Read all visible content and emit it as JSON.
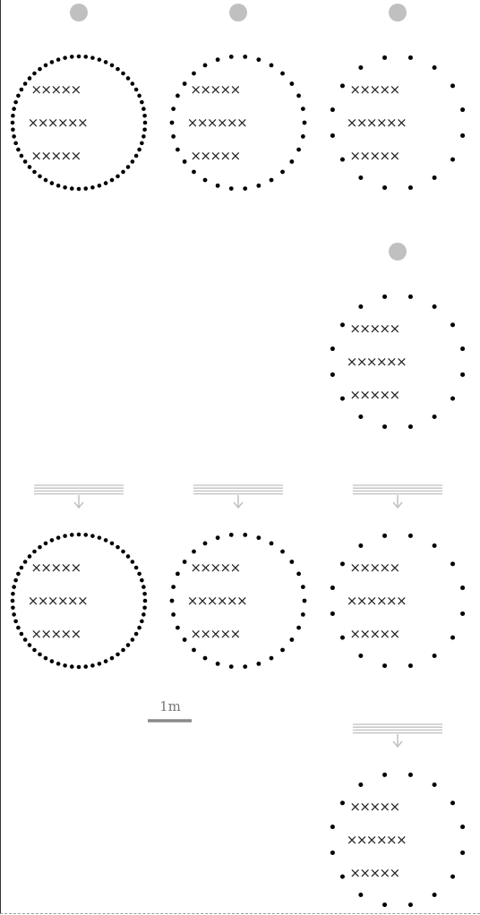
{
  "colors": {
    "ink": "#000000",
    "accent_gray": "#c0c0c0",
    "scale_bar": "#8a8a8a",
    "frame": "#333333"
  },
  "scale_label": "1m",
  "cross_glyph": "×",
  "panels": [
    {
      "id": "top-1",
      "style": "dense",
      "dot_count": 60,
      "marker": "light"
    },
    {
      "id": "top-2",
      "style": "medium",
      "dot_count": 30,
      "marker": "light"
    },
    {
      "id": "top-3",
      "style": "sparse",
      "dot_count": 16,
      "marker": "light"
    },
    {
      "id": "mid-3",
      "style": "sparse",
      "dot_count": 16,
      "marker": "light"
    },
    {
      "id": "bottom-1",
      "style": "dense",
      "dot_count": 60,
      "marker": "sprinkler"
    },
    {
      "id": "bottom-2",
      "style": "medium",
      "dot_count": 30,
      "marker": "sprinkler"
    },
    {
      "id": "bottom-3",
      "style": "sparse",
      "dot_count": 16,
      "marker": "sprinkler"
    },
    {
      "id": "low-3",
      "style": "sparse",
      "dot_count": 16,
      "marker": "sprinkler"
    }
  ],
  "cross_rows": [
    5,
    6,
    5
  ]
}
